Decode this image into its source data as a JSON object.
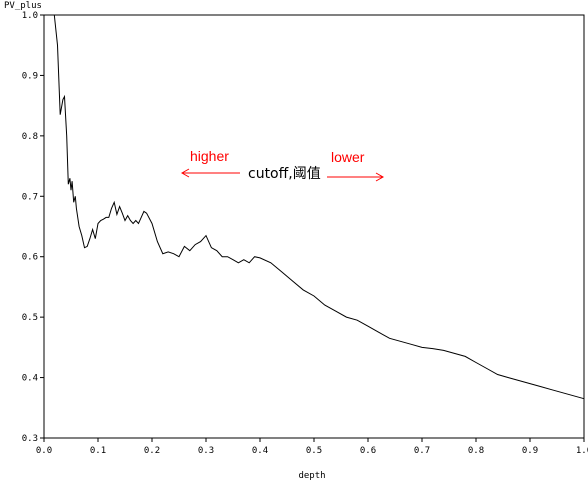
{
  "chart_data": {
    "type": "line",
    "title": "",
    "xlabel": "depth",
    "ylabel": "PV_plus",
    "xlim": [
      0.0,
      1.0
    ],
    "ylim": [
      0.3,
      1.0
    ],
    "x_ticks": [
      "0.0",
      "0.1",
      "0.2",
      "0.3",
      "0.4",
      "0.5",
      "0.6",
      "0.7",
      "0.8",
      "0.9",
      "1.0"
    ],
    "y_ticks": [
      "0.3",
      "0.4",
      "0.5",
      "0.6",
      "0.7",
      "0.8",
      "0.9",
      "1.0"
    ],
    "grid": false,
    "legend": "none",
    "line_color": "#000000",
    "series": [
      {
        "x": [
          0.0,
          0.019,
          0.025,
          0.03,
          0.035,
          0.038,
          0.042,
          0.045,
          0.048,
          0.05,
          0.052,
          0.055,
          0.058,
          0.06,
          0.065,
          0.07,
          0.075,
          0.08,
          0.085,
          0.09,
          0.095,
          0.1,
          0.105,
          0.11,
          0.115,
          0.12,
          0.125,
          0.13,
          0.135,
          0.14,
          0.145,
          0.15,
          0.155,
          0.16,
          0.165,
          0.17,
          0.175,
          0.18,
          0.185,
          0.19,
          0.2,
          0.21,
          0.22,
          0.23,
          0.24,
          0.25,
          0.26,
          0.27,
          0.28,
          0.29,
          0.3,
          0.31,
          0.32,
          0.33,
          0.34,
          0.35,
          0.36,
          0.37,
          0.38,
          0.39,
          0.4,
          0.42,
          0.44,
          0.46,
          0.48,
          0.5,
          0.52,
          0.54,
          0.56,
          0.58,
          0.6,
          0.62,
          0.64,
          0.66,
          0.68,
          0.7,
          0.72,
          0.74,
          0.76,
          0.78,
          0.8,
          0.82,
          0.84,
          0.86,
          0.88,
          0.9,
          0.92,
          0.94,
          0.96,
          0.98,
          1.0
        ],
        "y": [
          1.0,
          1.0,
          0.95,
          0.835,
          0.86,
          0.865,
          0.8,
          0.72,
          0.73,
          0.71,
          0.725,
          0.69,
          0.7,
          0.68,
          0.65,
          0.635,
          0.615,
          0.617,
          0.63,
          0.645,
          0.63,
          0.655,
          0.66,
          0.662,
          0.665,
          0.665,
          0.68,
          0.69,
          0.67,
          0.683,
          0.672,
          0.66,
          0.668,
          0.66,
          0.655,
          0.66,
          0.655,
          0.665,
          0.675,
          0.672,
          0.655,
          0.625,
          0.605,
          0.608,
          0.605,
          0.6,
          0.617,
          0.61,
          0.62,
          0.625,
          0.635,
          0.615,
          0.61,
          0.6,
          0.6,
          0.595,
          0.59,
          0.595,
          0.59,
          0.6,
          0.598,
          0.59,
          0.575,
          0.56,
          0.545,
          0.535,
          0.52,
          0.51,
          0.5,
          0.495,
          0.485,
          0.475,
          0.465,
          0.46,
          0.455,
          0.45,
          0.448,
          0.445,
          0.44,
          0.435,
          0.425,
          0.415,
          0.405,
          0.4,
          0.395,
          0.39,
          0.385,
          0.38,
          0.375,
          0.37,
          0.365
        ]
      }
    ],
    "annotations": {
      "left_label": "higher",
      "center_label": "cutoff,阈值",
      "right_label": "lower",
      "arrow_color": "#ff0000"
    }
  }
}
